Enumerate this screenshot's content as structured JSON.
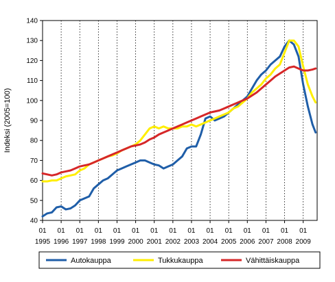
{
  "chart_data": {
    "type": "line",
    "xlabel": "",
    "ylabel": "Indeksi (2005=100)",
    "ylim": [
      40,
      140
    ],
    "yticks": [
      40,
      50,
      60,
      70,
      80,
      90,
      100,
      110,
      120,
      130,
      140
    ],
    "x_start": "1995-01",
    "x_end": "2009-09",
    "x_tick_top": [
      "01",
      "01",
      "01",
      "01",
      "01",
      "01",
      "01",
      "01",
      "01",
      "01",
      "01",
      "01",
      "01",
      "01",
      "01"
    ],
    "x_tick_bottom": [
      "1995",
      "1996",
      "1997",
      "1998",
      "1999",
      "2000",
      "2001",
      "2002",
      "2003",
      "2004",
      "2005",
      "2006",
      "2007",
      "2008",
      "2009"
    ],
    "grid": "vertical dotted lines at each year",
    "legend_position": "bottom",
    "colors": {
      "Autokauppa": "#1f5ea8",
      "Tukkukauppa": "#ffee00",
      "Vähittäiskauppa": "#d62728"
    },
    "series": [
      {
        "name": "Autokauppa",
        "points": [
          [
            "1995-01",
            42
          ],
          [
            "1995-04",
            43.5
          ],
          [
            "1995-07",
            44
          ],
          [
            "1995-10",
            46.5
          ],
          [
            "1996-01",
            47
          ],
          [
            "1996-04",
            45.5
          ],
          [
            "1996-07",
            46
          ],
          [
            "1996-10",
            47.5
          ],
          [
            "1997-01",
            50
          ],
          [
            "1997-04",
            51
          ],
          [
            "1997-07",
            52
          ],
          [
            "1997-10",
            56
          ],
          [
            "1998-01",
            58
          ],
          [
            "1998-04",
            60
          ],
          [
            "1998-07",
            61
          ],
          [
            "1998-10",
            63
          ],
          [
            "1999-01",
            65
          ],
          [
            "1999-04",
            66
          ],
          [
            "1999-07",
            67
          ],
          [
            "1999-10",
            68
          ],
          [
            "2000-01",
            69
          ],
          [
            "2000-04",
            70
          ],
          [
            "2000-07",
            70
          ],
          [
            "2000-10",
            69
          ],
          [
            "2001-01",
            68
          ],
          [
            "2001-04",
            67.5
          ],
          [
            "2001-07",
            66
          ],
          [
            "2001-10",
            67
          ],
          [
            "2002-01",
            68
          ],
          [
            "2002-04",
            70
          ],
          [
            "2002-07",
            72
          ],
          [
            "2002-10",
            76
          ],
          [
            "2003-01",
            77
          ],
          [
            "2003-04",
            77
          ],
          [
            "2003-07",
            83
          ],
          [
            "2003-10",
            91
          ],
          [
            "2004-01",
            92
          ],
          [
            "2004-04",
            90
          ],
          [
            "2004-07",
            91
          ],
          [
            "2004-10",
            92
          ],
          [
            "2005-01",
            94
          ],
          [
            "2005-04",
            96
          ],
          [
            "2005-07",
            98
          ],
          [
            "2005-10",
            100
          ],
          [
            "2006-01",
            102
          ],
          [
            "2006-04",
            106
          ],
          [
            "2006-07",
            110
          ],
          [
            "2006-10",
            113
          ],
          [
            "2007-01",
            115
          ],
          [
            "2007-04",
            118
          ],
          [
            "2007-07",
            120
          ],
          [
            "2007-10",
            122
          ],
          [
            "2008-01",
            127
          ],
          [
            "2008-04",
            130
          ],
          [
            "2008-07",
            128
          ],
          [
            "2008-10",
            122
          ],
          [
            "2009-01",
            108
          ],
          [
            "2009-04",
            97
          ],
          [
            "2009-07",
            88
          ],
          [
            "2009-09",
            84
          ]
        ]
      },
      {
        "name": "Tukkukauppa",
        "points": [
          [
            "1995-01",
            59.5
          ],
          [
            "1995-04",
            59.5
          ],
          [
            "1995-07",
            60
          ],
          [
            "1995-10",
            60
          ],
          [
            "1996-01",
            61
          ],
          [
            "1996-04",
            62
          ],
          [
            "1996-07",
            62.5
          ],
          [
            "1996-10",
            63
          ],
          [
            "1997-01",
            65
          ],
          [
            "1997-04",
            66
          ],
          [
            "1997-07",
            68
          ],
          [
            "1997-10",
            69
          ],
          [
            "1998-01",
            70
          ],
          [
            "1998-04",
            71
          ],
          [
            "1998-07",
            72
          ],
          [
            "1998-10",
            72.5
          ],
          [
            "1999-01",
            73.5
          ],
          [
            "1999-04",
            75
          ],
          [
            "1999-07",
            76
          ],
          [
            "1999-10",
            77
          ],
          [
            "2000-01",
            78
          ],
          [
            "2000-04",
            80
          ],
          [
            "2000-07",
            83
          ],
          [
            "2000-10",
            86
          ],
          [
            "2001-01",
            87
          ],
          [
            "2001-04",
            86
          ],
          [
            "2001-07",
            87
          ],
          [
            "2001-10",
            86
          ],
          [
            "2002-01",
            86
          ],
          [
            "2002-04",
            86
          ],
          [
            "2002-07",
            87
          ],
          [
            "2002-10",
            87
          ],
          [
            "2003-01",
            88
          ],
          [
            "2003-04",
            87
          ],
          [
            "2003-07",
            88
          ],
          [
            "2003-10",
            89
          ],
          [
            "2004-01",
            90
          ],
          [
            "2004-04",
            91
          ],
          [
            "2004-07",
            92
          ],
          [
            "2004-10",
            93
          ],
          [
            "2005-01",
            94
          ],
          [
            "2005-04",
            96
          ],
          [
            "2005-07",
            97
          ],
          [
            "2005-10",
            99
          ],
          [
            "2006-01",
            101
          ],
          [
            "2006-04",
            104
          ],
          [
            "2006-07",
            106
          ],
          [
            "2006-10",
            108
          ],
          [
            "2007-01",
            111
          ],
          [
            "2007-04",
            113
          ],
          [
            "2007-07",
            116
          ],
          [
            "2007-10",
            118
          ],
          [
            "2008-01",
            124
          ],
          [
            "2008-04",
            130
          ],
          [
            "2008-07",
            130
          ],
          [
            "2008-10",
            127
          ],
          [
            "2009-01",
            117
          ],
          [
            "2009-04",
            108
          ],
          [
            "2009-07",
            102
          ],
          [
            "2009-09",
            99
          ]
        ]
      },
      {
        "name": "Vähittäiskauppa",
        "points": [
          [
            "1995-01",
            63.5
          ],
          [
            "1995-04",
            63
          ],
          [
            "1995-07",
            62.5
          ],
          [
            "1995-10",
            63
          ],
          [
            "1996-01",
            64
          ],
          [
            "1996-04",
            64.5
          ],
          [
            "1996-07",
            65
          ],
          [
            "1996-10",
            66
          ],
          [
            "1997-01",
            67
          ],
          [
            "1997-04",
            67.5
          ],
          [
            "1997-07",
            68
          ],
          [
            "1997-10",
            69
          ],
          [
            "1998-01",
            70
          ],
          [
            "1998-04",
            71
          ],
          [
            "1998-07",
            72
          ],
          [
            "1998-10",
            73
          ],
          [
            "1999-01",
            74
          ],
          [
            "1999-04",
            75
          ],
          [
            "1999-07",
            76
          ],
          [
            "1999-10",
            77
          ],
          [
            "2000-01",
            77.5
          ],
          [
            "2000-04",
            78
          ],
          [
            "2000-07",
            79
          ],
          [
            "2000-10",
            80.5
          ],
          [
            "2001-01",
            81.5
          ],
          [
            "2001-04",
            83
          ],
          [
            "2001-07",
            84
          ],
          [
            "2001-10",
            85
          ],
          [
            "2002-01",
            86
          ],
          [
            "2002-04",
            87
          ],
          [
            "2002-07",
            88
          ],
          [
            "2002-10",
            89
          ],
          [
            "2003-01",
            90
          ],
          [
            "2003-04",
            91
          ],
          [
            "2003-07",
            92
          ],
          [
            "2003-10",
            93
          ],
          [
            "2004-01",
            94
          ],
          [
            "2004-04",
            94.5
          ],
          [
            "2004-07",
            95
          ],
          [
            "2004-10",
            96
          ],
          [
            "2005-01",
            97
          ],
          [
            "2005-04",
            98
          ],
          [
            "2005-07",
            99
          ],
          [
            "2005-10",
            100
          ],
          [
            "2006-01",
            101
          ],
          [
            "2006-04",
            102.5
          ],
          [
            "2006-07",
            104
          ],
          [
            "2006-10",
            106
          ],
          [
            "2007-01",
            108
          ],
          [
            "2007-04",
            110
          ],
          [
            "2007-07",
            112
          ],
          [
            "2007-10",
            113.5
          ],
          [
            "2008-01",
            115
          ],
          [
            "2008-04",
            116.5
          ],
          [
            "2008-07",
            117
          ],
          [
            "2008-10",
            116
          ],
          [
            "2009-01",
            115
          ],
          [
            "2009-04",
            115
          ],
          [
            "2009-07",
            115.5
          ],
          [
            "2009-09",
            116
          ]
        ]
      }
    ]
  }
}
